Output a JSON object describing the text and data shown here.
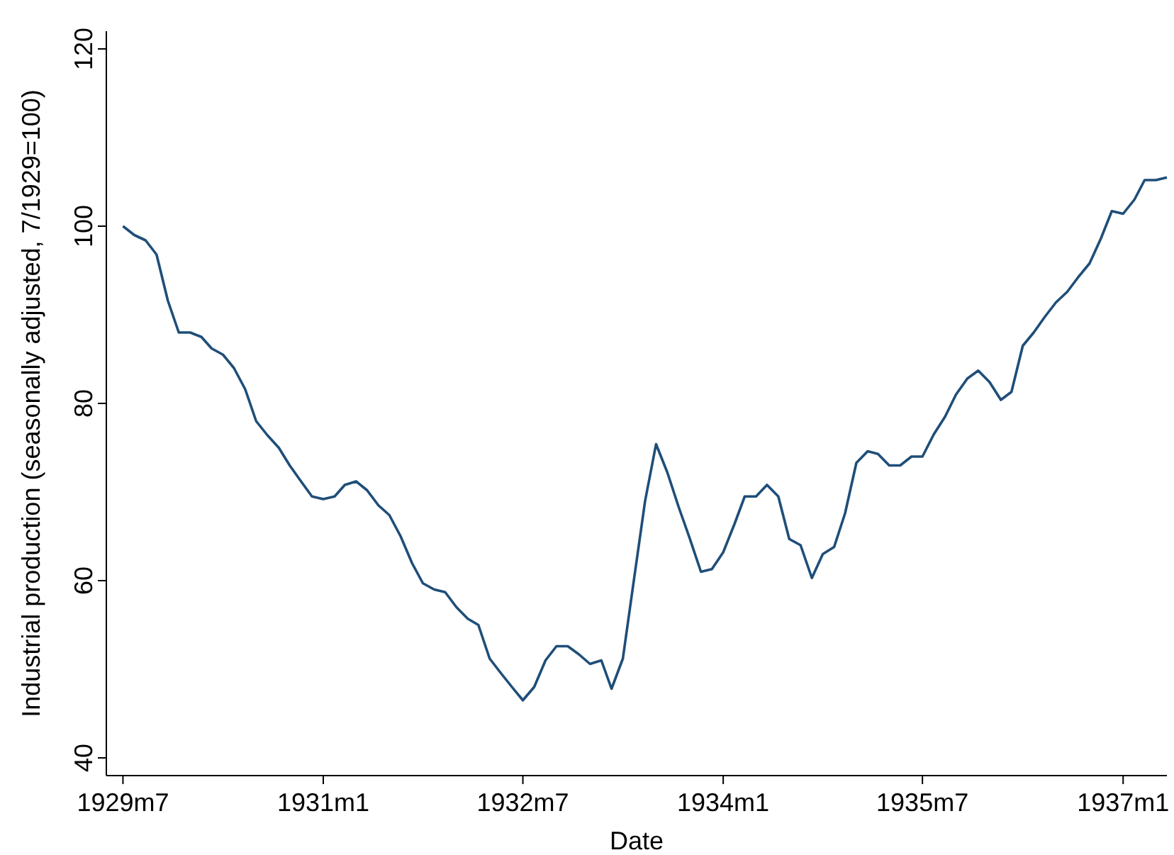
{
  "chart_data": {
    "type": "line",
    "xlabel": "Date",
    "ylabel": "Industrial production (seasonally adjusted, 7/1929=100)",
    "x": [
      "1929-07",
      "1929-08",
      "1929-09",
      "1929-10",
      "1929-11",
      "1929-12",
      "1930-01",
      "1930-02",
      "1930-03",
      "1930-04",
      "1930-05",
      "1930-06",
      "1930-07",
      "1930-08",
      "1930-09",
      "1930-10",
      "1930-11",
      "1930-12",
      "1931-01",
      "1931-02",
      "1931-03",
      "1931-04",
      "1931-05",
      "1931-06",
      "1931-07",
      "1931-08",
      "1931-09",
      "1931-10",
      "1931-11",
      "1931-12",
      "1932-01",
      "1932-02",
      "1932-03",
      "1932-04",
      "1932-05",
      "1932-06",
      "1932-07",
      "1932-08",
      "1932-09",
      "1932-10",
      "1932-11",
      "1932-12",
      "1933-01",
      "1933-02",
      "1933-03",
      "1933-04",
      "1933-05",
      "1933-06",
      "1933-07",
      "1933-08",
      "1933-09",
      "1933-10",
      "1933-11",
      "1933-12",
      "1934-01",
      "1934-02",
      "1934-03",
      "1934-04",
      "1934-05",
      "1934-06",
      "1934-07",
      "1934-08",
      "1934-09",
      "1934-10",
      "1934-11",
      "1934-12",
      "1935-01",
      "1935-02",
      "1935-03",
      "1935-04",
      "1935-05",
      "1935-06",
      "1935-07",
      "1935-08",
      "1935-09",
      "1935-10",
      "1935-11",
      "1935-12",
      "1936-01",
      "1936-02",
      "1936-03",
      "1936-04",
      "1936-05",
      "1936-06",
      "1936-07",
      "1936-08",
      "1936-09",
      "1936-10",
      "1936-11",
      "1936-12",
      "1937-01",
      "1937-02",
      "1937-03",
      "1937-04",
      "1937-05"
    ],
    "series": [
      {
        "color": "#1f4e79",
        "values": [
          100,
          99,
          98.4,
          96.8,
          91.6,
          88,
          88,
          87.5,
          86.2,
          85.5,
          84,
          81.6,
          78,
          76.4,
          75,
          73,
          71.2,
          69.5,
          69.2,
          69.5,
          70.8,
          71.2,
          70.2,
          68.5,
          67.4,
          65,
          62,
          59.7,
          59,
          58.7,
          57,
          55.7,
          55,
          51.2,
          49.6,
          48,
          46.5,
          48,
          51,
          52.6,
          52.6,
          51.7,
          50.6,
          51,
          47.8,
          51.2,
          60,
          69,
          75.4,
          72.2,
          68.3,
          64.8,
          61,
          61.3,
          63.2,
          66.4,
          69.5,
          69.5,
          70.8,
          69.5,
          64.7,
          64,
          60.3,
          63,
          63.8,
          67.6,
          73.3,
          74.6,
          74.3,
          73,
          73,
          74,
          74,
          76.5,
          78.5,
          81,
          82.8,
          83.7,
          82.4,
          80.4,
          81.3,
          86.5,
          88,
          89.8,
          91.4,
          92.6,
          94.3,
          95.8,
          98.6,
          101.7,
          101.4,
          103,
          105.2,
          105.2,
          105.5
        ]
      }
    ],
    "xlim": [
      "1929-06",
      "1937-05"
    ],
    "xticks": [
      {
        "value": "1929-07",
        "label": "1929m7"
      },
      {
        "value": "1931-01",
        "label": "1931m1"
      },
      {
        "value": "1932-07",
        "label": "1932m7"
      },
      {
        "value": "1934-01",
        "label": "1934m1"
      },
      {
        "value": "1935-07",
        "label": "1935m7"
      },
      {
        "value": "1937-01",
        "label": "1937m1"
      }
    ],
    "ylim": [
      38,
      122
    ],
    "yticks": [
      40,
      60,
      80,
      100,
      120
    ],
    "grid": false,
    "line_style": "solid",
    "marker": "none"
  }
}
